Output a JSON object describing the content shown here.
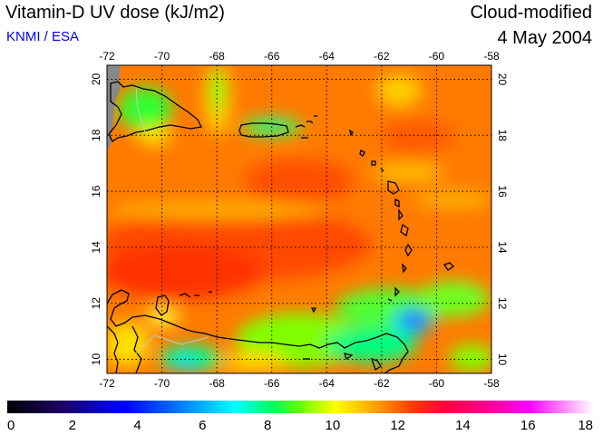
{
  "header": {
    "title": "Vitamin-D UV dose (kJ/m2)",
    "credit": "KNMI / ESA",
    "product": "Cloud-modified",
    "date": "4 May 2004"
  },
  "map": {
    "lon_range": [
      -72,
      -58
    ],
    "lat_range": [
      9.5,
      20.5
    ],
    "lon_ticks": [
      "-72",
      "-70",
      "-68",
      "-66",
      "-64",
      "-62",
      "-60",
      "-58"
    ],
    "lat_ticks": [
      "10",
      "12",
      "14",
      "16",
      "18",
      "20"
    ],
    "gridlines": true
  },
  "colorbar": {
    "range": [
      0,
      18
    ],
    "ticks": [
      "0",
      "2",
      "4",
      "6",
      "8",
      "10",
      "12",
      "14",
      "16",
      "18"
    ],
    "colors": [
      "#000000",
      "#1a0060",
      "#0000ff",
      "#0090ff",
      "#00ffff",
      "#00ff66",
      "#66ff00",
      "#ffff00",
      "#ffa000",
      "#ff4000",
      "#ff0040",
      "#ff00a0",
      "#ff00ff",
      "#ff88ff",
      "#ffffff"
    ]
  }
}
